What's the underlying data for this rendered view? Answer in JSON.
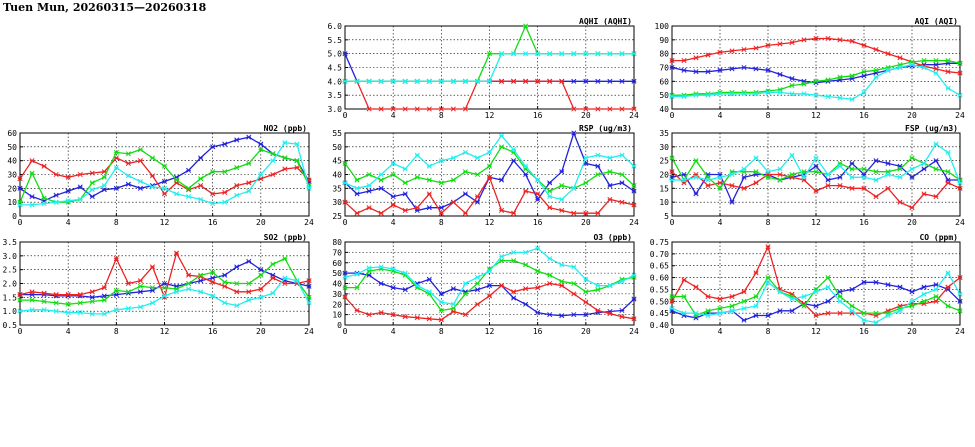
{
  "title": "Tuen Mun, 20260315—20260318",
  "colors": {
    "blue": "#2222dd",
    "red": "#ee2222",
    "green": "#11dd11",
    "cyan": "#22eeee",
    "grid": "#000000"
  },
  "chart_data": [
    {
      "id": "aqhi",
      "type": "line",
      "title": "AQHI (AQHI)",
      "xlim": [
        0,
        24
      ],
      "xticks": [
        0,
        4,
        8,
        12,
        16,
        20,
        24
      ],
      "ylim": [
        3.0,
        6.0
      ],
      "yticks": [
        "3.0",
        "3.5",
        "4.0",
        "4.5",
        "5.0",
        "5.5",
        "6.0"
      ],
      "grid": true,
      "series": [
        {
          "color": "blue",
          "values": [
            5,
            4,
            4,
            4,
            4,
            4,
            4,
            4,
            4,
            4,
            4,
            4,
            4,
            4,
            4,
            4,
            4,
            4,
            4,
            4,
            4,
            4,
            4,
            4,
            4
          ]
        },
        {
          "color": "red",
          "values": [
            4,
            4,
            3,
            3,
            3,
            3,
            3,
            3,
            3,
            3,
            3,
            4,
            4,
            4,
            4,
            4,
            4,
            4,
            4,
            3,
            3,
            3,
            3,
            3,
            3
          ]
        },
        {
          "color": "green",
          "values": [
            4,
            4,
            4,
            4,
            4,
            4,
            4,
            4,
            4,
            4,
            4,
            4,
            5,
            5,
            5,
            6,
            5,
            5,
            5,
            5,
            5,
            5,
            5,
            5,
            5
          ]
        },
        {
          "color": "cyan",
          "values": [
            4,
            4,
            4,
            4,
            4,
            4,
            4,
            4,
            4,
            4,
            4,
            4,
            4,
            5,
            5,
            5,
            5,
            5,
            5,
            5,
            5,
            5,
            5,
            5,
            5
          ]
        }
      ]
    },
    {
      "id": "aqi",
      "type": "line",
      "title": "AQI (AQI)",
      "xlim": [
        0,
        24
      ],
      "xticks": [
        0,
        4,
        8,
        12,
        16,
        20,
        24
      ],
      "ylim": [
        40,
        100
      ],
      "yticks": [
        "40",
        "50",
        "60",
        "70",
        "80",
        "90",
        "100"
      ],
      "grid": true,
      "series": [
        {
          "color": "blue",
          "values": [
            70,
            68,
            67,
            67,
            68,
            69,
            70,
            69,
            68,
            65,
            62,
            60,
            59,
            60,
            61,
            62,
            64,
            66,
            68,
            70,
            71,
            72,
            72,
            73,
            73
          ]
        },
        {
          "color": "red",
          "values": [
            75,
            75,
            77,
            79,
            81,
            82,
            83,
            84,
            86,
            87,
            88,
            90,
            91,
            91,
            90,
            89,
            86,
            83,
            80,
            77,
            74,
            71,
            69,
            67,
            66
          ]
        },
        {
          "color": "green",
          "values": [
            50,
            50,
            51,
            51,
            52,
            52,
            52,
            52,
            53,
            54,
            57,
            58,
            60,
            61,
            63,
            64,
            67,
            68,
            70,
            72,
            74,
            75,
            75,
            75,
            73
          ]
        },
        {
          "color": "cyan",
          "values": [
            49,
            49,
            50,
            50,
            51,
            51,
            51,
            51,
            52,
            52,
            51,
            51,
            50,
            49,
            48,
            47,
            52,
            63,
            68,
            70,
            72,
            70,
            66,
            55,
            50
          ]
        }
      ]
    },
    {
      "id": "no2",
      "type": "line",
      "title": "NO2 (ppb)",
      "xlim": [
        0,
        24
      ],
      "xticks": [
        0,
        4,
        8,
        12,
        16,
        20,
        24
      ],
      "ylim": [
        0,
        60
      ],
      "yticks": [
        "0",
        "10",
        "20",
        "30",
        "40",
        "50",
        "60"
      ],
      "grid": true,
      "series": [
        {
          "color": "blue",
          "values": [
            20,
            14,
            11,
            15,
            18,
            21,
            14,
            19,
            20,
            23,
            20,
            22,
            25,
            28,
            33,
            42,
            50,
            52,
            55,
            57,
            52,
            45,
            42,
            40,
            25
          ]
        },
        {
          "color": "red",
          "values": [
            27,
            40,
            36,
            30,
            28,
            30,
            31,
            32,
            42,
            38,
            40,
            29,
            16,
            24,
            19,
            22,
            16,
            17,
            22,
            24,
            27,
            30,
            34,
            35,
            26
          ]
        },
        {
          "color": "green",
          "values": [
            10,
            31,
            13,
            10,
            10,
            12,
            24,
            28,
            46,
            45,
            48,
            42,
            36,
            26,
            20,
            27,
            32,
            32,
            35,
            38,
            48,
            45,
            42,
            40,
            22
          ]
        },
        {
          "color": "cyan",
          "values": [
            8,
            8,
            9,
            10,
            11,
            12,
            19,
            22,
            35,
            29,
            25,
            21,
            20,
            16,
            14,
            12,
            9,
            10,
            15,
            18,
            30,
            40,
            53,
            52,
            20
          ]
        }
      ]
    },
    {
      "id": "rsp",
      "type": "line",
      "title": "RSP (ug/m3)",
      "xlim": [
        0,
        24
      ],
      "xticks": [
        0,
        4,
        8,
        12,
        16,
        20,
        24
      ],
      "ylim": [
        25,
        55
      ],
      "yticks": [
        "25",
        "30",
        "35",
        "40",
        "45",
        "50",
        "55"
      ],
      "grid": true,
      "series": [
        {
          "color": "blue",
          "values": [
            37,
            33,
            34,
            35,
            32,
            33,
            27,
            28,
            28,
            30,
            33,
            30,
            39,
            38,
            45,
            40,
            31,
            37,
            41,
            55,
            44,
            43,
            36,
            37,
            34
          ]
        },
        {
          "color": "red",
          "values": [
            30,
            26,
            28,
            26,
            29,
            27,
            28,
            33,
            26,
            30,
            26,
            32,
            39,
            27,
            26,
            34,
            33,
            28,
            27,
            26,
            26,
            26,
            31,
            30,
            29
          ]
        },
        {
          "color": "green",
          "values": [
            44,
            38,
            40,
            38,
            40,
            37,
            39,
            38,
            37,
            38,
            41,
            40,
            43,
            50,
            48,
            42,
            38,
            34,
            36,
            35,
            37,
            40,
            41,
            40,
            36
          ]
        },
        {
          "color": "cyan",
          "values": [
            37,
            35,
            36,
            40,
            44,
            42,
            47,
            43,
            45,
            46,
            48,
            46,
            48,
            54,
            49,
            43,
            38,
            32,
            31,
            35,
            46,
            47,
            46,
            47,
            43
          ]
        }
      ]
    },
    {
      "id": "fsp",
      "type": "line",
      "title": "FSP (ug/m3)",
      "xlim": [
        0,
        24
      ],
      "xticks": [
        0,
        4,
        8,
        12,
        16,
        20,
        24
      ],
      "ylim": [
        5,
        35
      ],
      "yticks": [
        "5",
        "10",
        "15",
        "20",
        "25",
        "30",
        "35"
      ],
      "grid": true,
      "series": [
        {
          "color": "blue",
          "values": [
            19,
            20,
            13,
            20,
            20,
            10,
            19,
            20,
            20,
            18,
            19,
            20,
            23,
            18,
            19,
            24,
            20,
            25,
            24,
            23,
            19,
            22,
            25,
            18,
            18
          ]
        },
        {
          "color": "red",
          "values": [
            21,
            17,
            20,
            16,
            17,
            16,
            15,
            17,
            20,
            20,
            19,
            18,
            14,
            16,
            16,
            15,
            15,
            12,
            15,
            10,
            8,
            13,
            12,
            17,
            15
          ]
        },
        {
          "color": "green",
          "values": [
            26,
            18,
            25,
            19,
            15,
            21,
            21,
            21,
            19,
            18,
            20,
            21,
            21,
            20,
            24,
            22,
            22,
            21,
            21,
            22,
            26,
            24,
            22,
            21,
            18
          ]
        },
        {
          "color": "cyan",
          "values": [
            18,
            18,
            19,
            18,
            19,
            20,
            22,
            26,
            21,
            22,
            27,
            19,
            26,
            20,
            23,
            19,
            19,
            18,
            20,
            19,
            22,
            24,
            31,
            28,
            17
          ]
        }
      ]
    },
    {
      "id": "so2",
      "type": "line",
      "title": "SO2 (ppb)",
      "xlim": [
        0,
        24
      ],
      "xticks": [
        0,
        4,
        8,
        12,
        16,
        20,
        24
      ],
      "ylim": [
        0.5,
        3.5
      ],
      "yticks": [
        "0.5",
        "1.0",
        "1.5",
        "2.0",
        "2.5",
        "3.0",
        "3.5"
      ],
      "grid": true,
      "series": [
        {
          "color": "blue",
          "values": [
            1.6,
            1.6,
            1.6,
            1.55,
            1.55,
            1.55,
            1.5,
            1.55,
            1.6,
            1.65,
            1.7,
            1.75,
            2.0,
            1.9,
            2.0,
            2.1,
            2.2,
            2.3,
            2.6,
            2.8,
            2.5,
            2.3,
            2.1,
            2.0,
            1.9
          ]
        },
        {
          "color": "red",
          "values": [
            1.6,
            1.7,
            1.65,
            1.6,
            1.6,
            1.6,
            1.7,
            1.85,
            2.9,
            2.0,
            2.1,
            2.6,
            1.5,
            3.1,
            2.3,
            2.25,
            2.05,
            1.9,
            1.7,
            1.7,
            1.8,
            2.2,
            2.0,
            2.0,
            2.1
          ]
        },
        {
          "color": "green",
          "values": [
            1.4,
            1.4,
            1.35,
            1.3,
            1.25,
            1.3,
            1.35,
            1.4,
            1.75,
            1.7,
            1.9,
            1.85,
            1.85,
            1.8,
            2.0,
            2.3,
            2.4,
            2.05,
            2.0,
            2.0,
            2.3,
            2.7,
            2.9,
            2.1,
            1.5
          ]
        },
        {
          "color": "cyan",
          "values": [
            1.0,
            1.05,
            1.05,
            1.0,
            0.95,
            0.95,
            0.9,
            0.9,
            1.05,
            1.1,
            1.15,
            1.3,
            1.55,
            1.7,
            1.8,
            1.7,
            1.55,
            1.3,
            1.2,
            1.4,
            1.5,
            1.65,
            2.2,
            2.1,
            1.3
          ]
        }
      ]
    },
    {
      "id": "o3",
      "type": "line",
      "title": "O3 (ppb)",
      "xlim": [
        0,
        24
      ],
      "xticks": [
        0,
        4,
        8,
        12,
        16,
        20,
        24
      ],
      "ylim": [
        0,
        80
      ],
      "yticks": [
        "0",
        "10",
        "20",
        "30",
        "40",
        "50",
        "60",
        "70",
        "80"
      ],
      "grid": true,
      "series": [
        {
          "color": "blue",
          "values": [
            50,
            50,
            48,
            40,
            36,
            34,
            40,
            44,
            30,
            35,
            32,
            34,
            38,
            38,
            26,
            20,
            12,
            10,
            9,
            10,
            10,
            12,
            13,
            14,
            25
          ]
        },
        {
          "color": "red",
          "values": [
            27,
            14,
            10,
            12,
            10,
            8,
            7,
            6,
            5,
            13,
            10,
            20,
            28,
            38,
            32,
            35,
            36,
            40,
            38,
            30,
            22,
            14,
            11,
            8,
            6
          ]
        },
        {
          "color": "green",
          "values": [
            36,
            36,
            52,
            54,
            52,
            48,
            36,
            30,
            14,
            16,
            30,
            40,
            54,
            62,
            62,
            58,
            52,
            48,
            42,
            40,
            32,
            34,
            38,
            44,
            46
          ]
        },
        {
          "color": "cyan",
          "values": [
            46,
            49,
            55,
            56,
            54,
            50,
            38,
            32,
            22,
            20,
            40,
            46,
            52,
            66,
            70,
            70,
            74,
            64,
            58,
            56,
            44,
            38,
            38,
            42,
            48
          ]
        }
      ]
    },
    {
      "id": "co",
      "type": "line",
      "title": "CO (ppm)",
      "xlim": [
        0,
        24
      ],
      "xticks": [
        0,
        4,
        8,
        12,
        16,
        20,
        24
      ],
      "ylim": [
        0.4,
        0.75
      ],
      "yticks": [
        "0.40",
        "0.45",
        "0.50",
        "0.55",
        "0.60",
        "0.65",
        "0.70",
        "0.75"
      ],
      "grid": true,
      "series": [
        {
          "color": "blue",
          "values": [
            0.46,
            0.44,
            0.43,
            0.45,
            0.45,
            0.46,
            0.42,
            0.44,
            0.44,
            0.46,
            0.46,
            0.49,
            0.48,
            0.5,
            0.54,
            0.55,
            0.58,
            0.58,
            0.57,
            0.56,
            0.54,
            0.56,
            0.57,
            0.55,
            0.5
          ]
        },
        {
          "color": "red",
          "values": [
            0.5,
            0.59,
            0.56,
            0.52,
            0.51,
            0.52,
            0.54,
            0.62,
            0.73,
            0.55,
            0.53,
            0.49,
            0.44,
            0.45,
            0.45,
            0.45,
            0.45,
            0.44,
            0.46,
            0.48,
            0.49,
            0.49,
            0.5,
            0.56,
            0.6
          ]
        },
        {
          "color": "green",
          "values": [
            0.52,
            0.52,
            0.44,
            0.46,
            0.47,
            0.48,
            0.5,
            0.52,
            0.6,
            0.54,
            0.52,
            0.48,
            0.55,
            0.6,
            0.52,
            0.48,
            0.45,
            0.45,
            0.45,
            0.47,
            0.48,
            0.5,
            0.52,
            0.48,
            0.46
          ]
        },
        {
          "color": "cyan",
          "values": [
            0.47,
            0.45,
            0.45,
            0.44,
            0.45,
            0.46,
            0.47,
            0.48,
            0.58,
            0.54,
            0.51,
            0.52,
            0.54,
            0.56,
            0.5,
            0.46,
            0.42,
            0.41,
            0.44,
            0.46,
            0.5,
            0.53,
            0.55,
            0.62,
            0.53
          ]
        }
      ]
    }
  ]
}
